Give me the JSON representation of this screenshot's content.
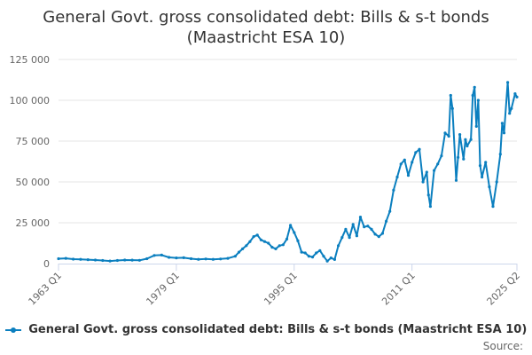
{
  "chart_data": {
    "type": "line",
    "title_line1": "General Govt. gross consolidated debt: Bills & s-t bonds",
    "title_line2": "(Maastricht ESA 10)",
    "xlabel": "",
    "ylabel": "",
    "x_range": [
      "1963 Q1",
      "2025 Q2"
    ],
    "x_tick_labels": [
      "1963 Q1",
      "1979 Q1",
      "1995 Q1",
      "2011 Q1",
      "2025 Q2"
    ],
    "ylim": [
      0,
      125000
    ],
    "y_ticks": [
      0,
      25000,
      50000,
      75000,
      100000,
      125000
    ],
    "y_tick_labels": [
      "0",
      "25 000",
      "50 000",
      "75 000",
      "100 000",
      "125 000"
    ],
    "grid": "horizontal",
    "legend_position": "bottom",
    "source_label": "Source:",
    "series": [
      {
        "name": "General Govt. gross consolidated debt: Bills & s-t bonds (Maastricht ESA 10)",
        "color": "#0b7fbf",
        "points": [
          [
            "1963 Q1",
            3000
          ],
          [
            "1964 Q1",
            3200
          ],
          [
            "1965 Q1",
            2700
          ],
          [
            "1966 Q1",
            2600
          ],
          [
            "1967 Q1",
            2400
          ],
          [
            "1968 Q1",
            2200
          ],
          [
            "1969 Q1",
            1900
          ],
          [
            "1970 Q1",
            1600
          ],
          [
            "1971 Q1",
            1900
          ],
          [
            "1972 Q1",
            2200
          ],
          [
            "1973 Q1",
            2100
          ],
          [
            "1974 Q1",
            2000
          ],
          [
            "1975 Q1",
            3000
          ],
          [
            "1976 Q1",
            5000
          ],
          [
            "1977 Q1",
            5200
          ],
          [
            "1978 Q1",
            3800
          ],
          [
            "1979 Q1",
            3500
          ],
          [
            "1980 Q1",
            3600
          ],
          [
            "1981 Q1",
            3000
          ],
          [
            "1982 Q1",
            2600
          ],
          [
            "1983 Q1",
            2800
          ],
          [
            "1984 Q1",
            2600
          ],
          [
            "1985 Q1",
            2800
          ],
          [
            "1986 Q1",
            3200
          ],
          [
            "1987 Q1",
            4500
          ],
          [
            "1987 Q3",
            7000
          ],
          [
            "1988 Q1",
            9000
          ],
          [
            "1988 Q3",
            11000
          ],
          [
            "1989 Q1",
            13500
          ],
          [
            "1989 Q3",
            16500
          ],
          [
            "1990 Q1",
            17500
          ],
          [
            "1990 Q3",
            14500
          ],
          [
            "1991 Q1",
            13500
          ],
          [
            "1991 Q3",
            12500
          ],
          [
            "1992 Q1",
            10000
          ],
          [
            "1992 Q3",
            9000
          ],
          [
            "1993 Q1",
            11000
          ],
          [
            "1993 Q3",
            11500
          ],
          [
            "1994 Q1",
            15000
          ],
          [
            "1994 Q3",
            23500
          ],
          [
            "1995 Q1",
            19000
          ],
          [
            "1995 Q3",
            14000
          ],
          [
            "1996 Q1",
            7000
          ],
          [
            "1996 Q3",
            6500
          ],
          [
            "1997 Q1",
            4500
          ],
          [
            "1997 Q3",
            4000
          ],
          [
            "1998 Q1",
            6500
          ],
          [
            "1998 Q3",
            8000
          ],
          [
            "1999 Q1",
            4500
          ],
          [
            "1999 Q3",
            1500
          ],
          [
            "2000 Q1",
            3500
          ],
          [
            "2000 Q3",
            2500
          ],
          [
            "2001 Q1",
            11000
          ],
          [
            "2001 Q3",
            16000
          ],
          [
            "2002 Q1",
            21000
          ],
          [
            "2002 Q3",
            16000
          ],
          [
            "2003 Q1",
            24000
          ],
          [
            "2003 Q3",
            17000
          ],
          [
            "2004 Q1",
            28500
          ],
          [
            "2004 Q3",
            22500
          ],
          [
            "2005 Q1",
            23000
          ],
          [
            "2005 Q3",
            21000
          ],
          [
            "2006 Q1",
            18000
          ],
          [
            "2006 Q3",
            16500
          ],
          [
            "2007 Q1",
            18500
          ],
          [
            "2007 Q3",
            26000
          ],
          [
            "2008 Q1",
            32000
          ],
          [
            "2008 Q3",
            45000
          ],
          [
            "2009 Q1",
            53000
          ],
          [
            "2009 Q3",
            61000
          ],
          [
            "2010 Q1",
            63500
          ],
          [
            "2010 Q3",
            54000
          ],
          [
            "2011 Q1",
            62000
          ],
          [
            "2011 Q3",
            68000
          ],
          [
            "2012 Q1",
            70000
          ],
          [
            "2012 Q3",
            50000
          ],
          [
            "2013 Q1",
            56000
          ],
          [
            "2013 Q2",
            42000
          ],
          [
            "2013 Q3",
            35000
          ],
          [
            "2014 Q1",
            57000
          ],
          [
            "2014 Q3",
            61000
          ],
          [
            "2015 Q1",
            66000
          ],
          [
            "2015 Q3",
            80000
          ],
          [
            "2016 Q1",
            78000
          ],
          [
            "2016 Q2",
            103000
          ],
          [
            "2016 Q3",
            95000
          ],
          [
            "2017 Q1",
            51000
          ],
          [
            "2017 Q2",
            65000
          ],
          [
            "2017 Q3",
            79000
          ],
          [
            "2018 Q1",
            64000
          ],
          [
            "2018 Q2",
            76000
          ],
          [
            "2018 Q3",
            72000
          ],
          [
            "2019 Q1",
            76000
          ],
          [
            "2019 Q2",
            103000
          ],
          [
            "2019 Q3",
            108000
          ],
          [
            "2019 Q4",
            84000
          ],
          [
            "2020 Q1",
            100000
          ],
          [
            "2020 Q2",
            60000
          ],
          [
            "2020 Q3",
            53000
          ],
          [
            "2021 Q1",
            62000
          ],
          [
            "2021 Q3",
            47000
          ],
          [
            "2022 Q1",
            35000
          ],
          [
            "2022 Q3",
            50000
          ],
          [
            "2023 Q1",
            67000
          ],
          [
            "2023 Q2",
            86000
          ],
          [
            "2023 Q3",
            80000
          ],
          [
            "2024 Q1",
            111000
          ],
          [
            "2024 Q2",
            92000
          ],
          [
            "2024 Q3",
            95000
          ],
          [
            "2025 Q1",
            104000
          ],
          [
            "2025 Q2",
            102000
          ]
        ]
      }
    ]
  }
}
